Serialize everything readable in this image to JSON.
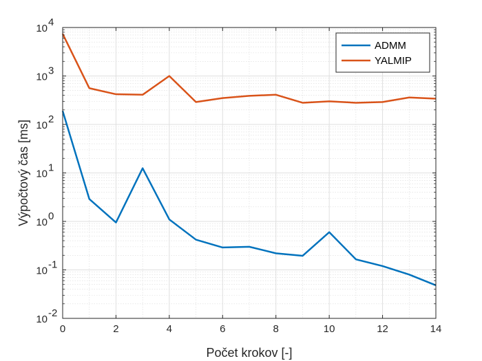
{
  "chart_data": {
    "type": "line",
    "title": "",
    "xlabel": "Počet krokov [-]",
    "ylabel": "Výpočtový čas [ms]",
    "xlim": [
      0,
      14
    ],
    "ylim": [
      0.01,
      10000
    ],
    "yscale": "log",
    "grid": true,
    "minor_grid": true,
    "legend_position": "top-right",
    "x_ticks": [
      0,
      2,
      4,
      6,
      8,
      10,
      12,
      14
    ],
    "y_ticks": [
      {
        "value": 0.01,
        "base": "10",
        "exp": "-2"
      },
      {
        "value": 0.1,
        "base": "10",
        "exp": "-1"
      },
      {
        "value": 1,
        "base": "10",
        "exp": "0"
      },
      {
        "value": 10,
        "base": "10",
        "exp": "1"
      },
      {
        "value": 100,
        "base": "10",
        "exp": "2"
      },
      {
        "value": 1000,
        "base": "10",
        "exp": "3"
      },
      {
        "value": 10000,
        "base": "10",
        "exp": "4"
      }
    ],
    "x": [
      0,
      1,
      2,
      3,
      4,
      5,
      6,
      7,
      8,
      9,
      10,
      11,
      12,
      13,
      14
    ],
    "series": [
      {
        "name": "ADMM",
        "color": "#0072BD",
        "values": [
          190,
          2.9,
          0.95,
          12.5,
          1.1,
          0.42,
          0.29,
          0.3,
          0.22,
          0.195,
          0.6,
          0.165,
          0.12,
          0.08,
          0.048
        ]
      },
      {
        "name": "YALMIP",
        "color": "#D95319",
        "values": [
          7400,
          560,
          420,
          410,
          1000,
          290,
          350,
          390,
          410,
          280,
          300,
          280,
          290,
          360,
          340
        ]
      }
    ]
  }
}
